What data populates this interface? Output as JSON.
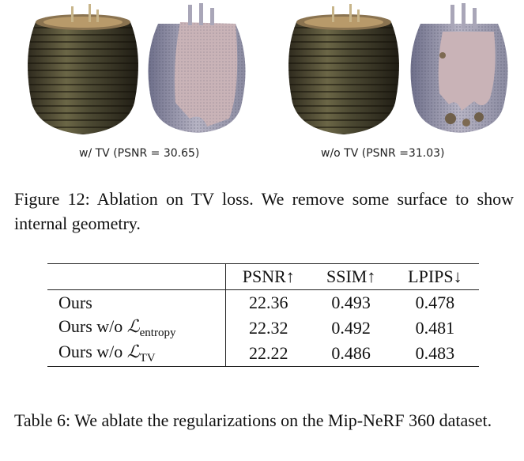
{
  "figure": {
    "panels": [
      {
        "caption": "w/ TV (PSNR = 30.65)",
        "left_render": "textured-vase",
        "right_render": "mesh-vase-cutaway"
      },
      {
        "caption": "w/o TV (PSNR =31.03)",
        "left_render": "textured-vase",
        "right_render": "mesh-vase-cutaway-noisy"
      }
    ],
    "caption": "Figure 12: Ablation on TV loss. We remove some surface to show internal geometry."
  },
  "table": {
    "headers": [
      "",
      "PSNR↑",
      "SSIM↑",
      "LPIPS↓"
    ],
    "rows": [
      {
        "method": "Ours",
        "method_loss": "",
        "method_sub": "",
        "psnr": "22.36",
        "ssim": "0.493",
        "lpips": "0.478"
      },
      {
        "method": "Ours w/o ",
        "method_loss": "ℒ",
        "method_sub": "entropy",
        "psnr": "22.32",
        "ssim": "0.492",
        "lpips": "0.481"
      },
      {
        "method": "Ours w/o ",
        "method_loss": "ℒ",
        "method_sub": "TV",
        "psnr": "22.22",
        "ssim": "0.486",
        "lpips": "0.483"
      }
    ],
    "caption": "Table 6: We ablate the regularizations on the Mip-NeRF 360 dataset."
  }
}
